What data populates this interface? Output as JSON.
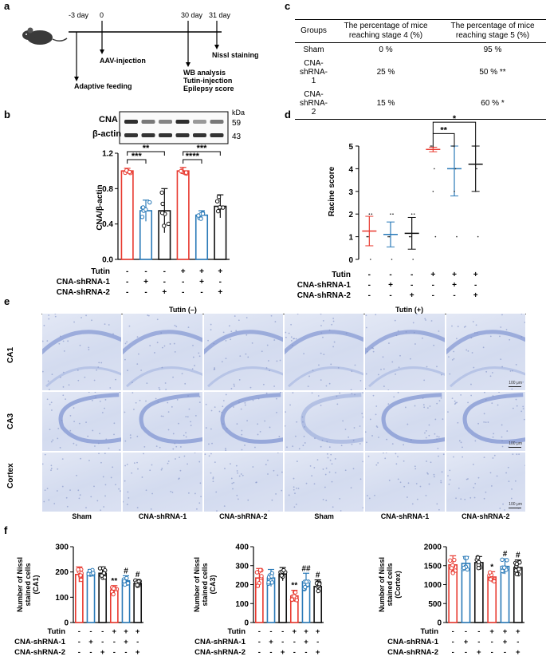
{
  "panels": {
    "a": {
      "label": "a",
      "timeline": [
        {
          "day": "-3 day",
          "event": "Adaptive feeding"
        },
        {
          "day": "0",
          "event": "AAV-injection"
        },
        {
          "day": "30 day",
          "event": "WB analysis",
          "extra": [
            "Tutin-injection",
            "Epilepsy score"
          ]
        },
        {
          "day": "31 day",
          "event": "Nissl staining"
        }
      ]
    },
    "b": {
      "label": "b",
      "blot": {
        "protein": "CNA",
        "loading": "β-actin",
        "kda_label": "kDa",
        "kda_cna": "59",
        "kda_actin": "43"
      },
      "ylabel": "CNA/β-actin",
      "sig": [
        "***",
        "**",
        "***",
        "****"
      ]
    },
    "c": {
      "label": "c",
      "headers": [
        "Groups",
        "The percentage of mice reaching stage 4 (%)",
        "The percentage of mice reaching stage 5 (%)"
      ],
      "rows": [
        [
          "Sham",
          "0 %",
          "95 %"
        ],
        [
          "CNA-shRNA-1",
          "25 %",
          "50 % **"
        ],
        [
          "CNA-shRNA-2",
          "15 %",
          "60 % *"
        ]
      ]
    },
    "d": {
      "label": "d",
      "ylabel": "Racine score",
      "sig": [
        "*",
        "**"
      ]
    },
    "e": {
      "label": "e",
      "tutin_minus": "Tutin (–)",
      "tutin_plus": "Tutin (+)",
      "rows": [
        "CA1",
        "CA3",
        "Cortex"
      ],
      "cols": [
        "Sham",
        "CNA-shRNA-1",
        "CNA-shRNA-2",
        "Sham",
        "CNA-shRNA-1",
        "CNA-shRNA-2"
      ],
      "scale": "100 μm"
    },
    "f": {
      "label": "f",
      "ylabels": [
        "Number of Nissl stained cells (CA1)",
        "Number of Nissl stained cells (CA3)",
        "Number of Nissl stained cells (Cortex)"
      ],
      "sig_plus": [
        "**",
        "#",
        "#"
      ],
      "sig_plus_ca3": [
        "**",
        "##",
        "#"
      ],
      "sig_plus_ctx": [
        "*",
        "#",
        "#"
      ]
    }
  },
  "conditions": {
    "row_labels": [
      "Tutin",
      "CNA-shRNA-1",
      "CNA-shRNA-2"
    ],
    "tutin": [
      "-",
      "-",
      "-",
      "+",
      "+",
      "+"
    ],
    "sh1": [
      "-",
      "+",
      "-",
      "-",
      "+",
      "-"
    ],
    "sh2": [
      "-",
      "-",
      "+",
      "-",
      "-",
      "+"
    ]
  },
  "colors": {
    "sham": "#e8392f",
    "sh1": "#2a7ab8",
    "sh2": "#111111",
    "nissl": "#c9d3ec",
    "nissl_dark": "#8c9fd6"
  },
  "chart_data": [
    {
      "id": "b",
      "type": "bar",
      "title": "",
      "xlabel": "",
      "ylabel": "CNA/β-actin",
      "ylim": [
        0,
        1.2
      ],
      "yticks": [
        "0.0",
        "0.4",
        "0.8",
        "1.2"
      ],
      "categories": [
        "Sham",
        "CNA-shRNA-1",
        "CNA-shRNA-2",
        "Sham+Tutin",
        "CNA-shRNA-1+Tutin",
        "CNA-shRNA-2+Tutin"
      ],
      "values": [
        1.0,
        0.55,
        0.55,
        1.0,
        0.5,
        0.6
      ],
      "errors": [
        0.03,
        0.12,
        0.25,
        0.04,
        0.05,
        0.13
      ]
    },
    {
      "id": "d",
      "type": "scatter",
      "title": "",
      "xlabel": "",
      "ylabel": "Racine score",
      "ylim": [
        0,
        5
      ],
      "yticks": [
        "0",
        "1",
        "2",
        "3",
        "4",
        "5"
      ],
      "categories": [
        "Sham",
        "CNA-shRNA-1",
        "CNA-shRNA-2",
        "Sham+Tutin",
        "CNA-shRNA-1+Tutin",
        "CNA-shRNA-2+Tutin"
      ],
      "values": [
        1.25,
        1.1,
        1.15,
        4.85,
        4.0,
        4.2
      ],
      "errors": [
        0.65,
        0.55,
        0.7,
        0.1,
        1.2,
        1.2
      ]
    },
    {
      "id": "f-ca1",
      "type": "bar",
      "ylabel": "Number of Nissl stained cells (CA1)",
      "ylim": [
        0,
        300
      ],
      "yticks": [
        "0",
        "100",
        "200",
        "300"
      ],
      "categories": [
        "Sham",
        "CNA-shRNA-1",
        "CNA-shRNA-2",
        "Sham+Tutin",
        "CNA-shRNA-1+Tutin",
        "CNA-shRNA-2+Tutin"
      ],
      "values": [
        190,
        198,
        195,
        128,
        165,
        155
      ],
      "errors": [
        30,
        12,
        25,
        18,
        20,
        15
      ]
    },
    {
      "id": "f-ca3",
      "type": "bar",
      "ylabel": "Number of Nissl stained cells (CA3)",
      "ylim": [
        0,
        400
      ],
      "yticks": [
        "0",
        "100",
        "200",
        "300",
        "400"
      ],
      "categories": [
        "Sham",
        "CNA-shRNA-1",
        "CNA-shRNA-2",
        "Sham+Tutin",
        "CNA-shRNA-1+Tutin",
        "CNA-shRNA-2+Tutin"
      ],
      "values": [
        235,
        235,
        255,
        140,
        215,
        190
      ],
      "errors": [
        50,
        45,
        35,
        30,
        45,
        35
      ]
    },
    {
      "id": "f-ctx",
      "type": "bar",
      "ylabel": "Number of Nissl stained cells (Cortex)",
      "ylim": [
        0,
        2000
      ],
      "yticks": [
        "0",
        "500",
        "1000",
        "1500",
        "2000"
      ],
      "categories": [
        "Sham",
        "CNA-shRNA-1",
        "CNA-shRNA-2",
        "Sham+Tutin",
        "CNA-shRNA-1+Tutin",
        "CNA-shRNA-2+Tutin"
      ],
      "values": [
        1520,
        1560,
        1580,
        1200,
        1480,
        1450
      ],
      "errors": [
        240,
        180,
        160,
        140,
        200,
        200
      ]
    }
  ]
}
